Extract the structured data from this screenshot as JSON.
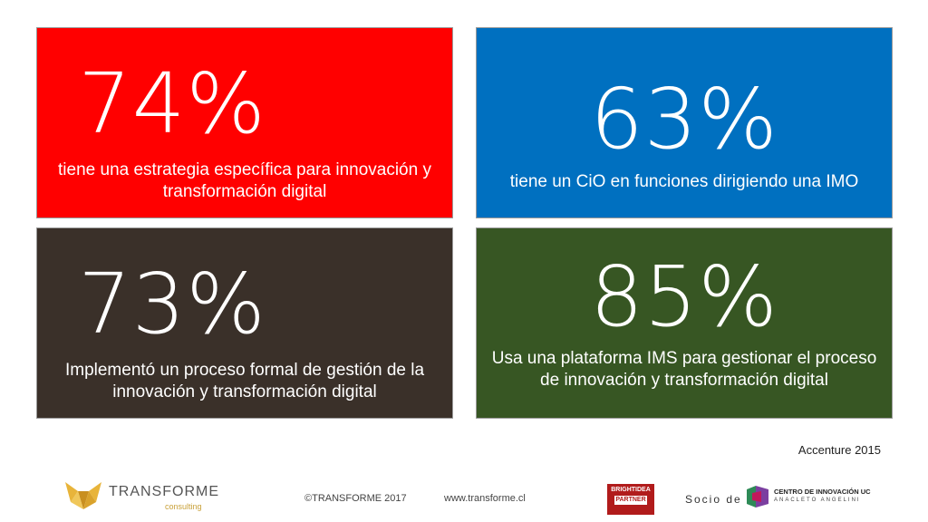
{
  "tiles": [
    {
      "percent": "74%",
      "text": "tiene una estrategia específica para innovación y transformación digital",
      "color": "#ff0000"
    },
    {
      "percent": "63%",
      "text": "tiene un CiO en funciones dirigiendo una IMO",
      "color": "#0070c0"
    },
    {
      "percent": "73%",
      "text": "Implementó un proceso formal de gestión de la innovación y transformación digital",
      "color": "#3a3029"
    },
    {
      "percent": "85%",
      "text": "Usa una plataforma IMS para gestionar el proceso de innovación y transformación digital",
      "color": "#375623"
    }
  ],
  "source": "Accenture 2015",
  "footer": {
    "logo_name": "TRANSFORME",
    "logo_sub": "consulting",
    "copyright": "©TRANSFORME 2017",
    "website": "www.transforme.cl",
    "brightidea_line1": "BRIGHTIDEA",
    "brightidea_line2": "PARTNER",
    "socio_label": "Socio de",
    "partner_name": "CENTRO DE INNOVACIÓN UC",
    "partner_sub": "ANACLETO ANGELINI"
  }
}
